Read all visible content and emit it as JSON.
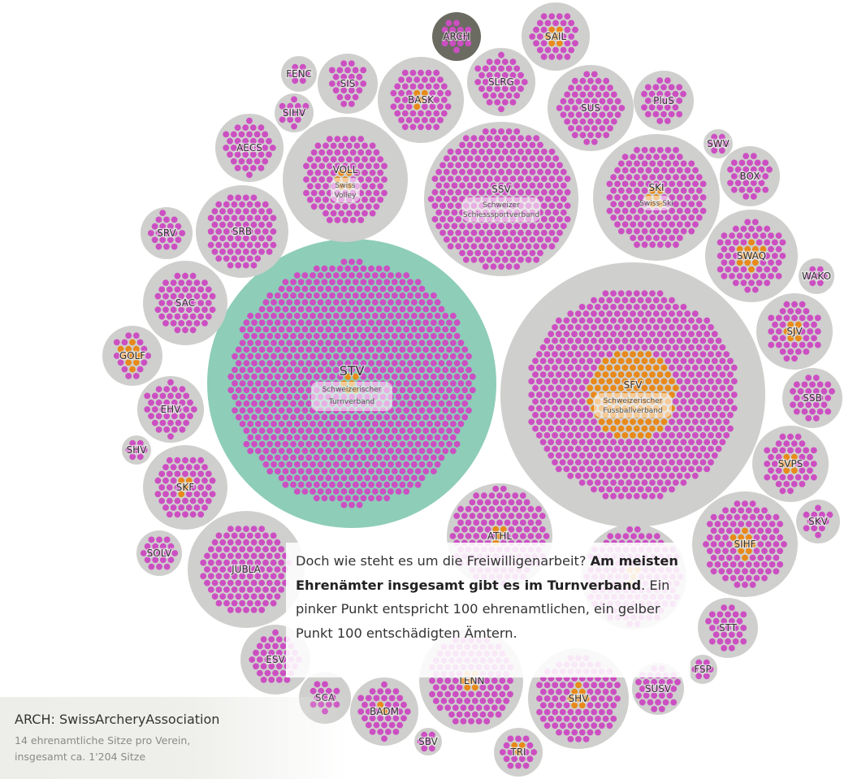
{
  "chart_data": {
    "type": "bubble",
    "unit_note": "Ein pinker Punkt = 100 ehrenamtliche Ämter, ein gelber Punkt = 100 entschädigte Ämter",
    "colors": {
      "circle": "#cfcfcd",
      "highlight": "#8ecdb8",
      "pink": "#cc4fc2",
      "orange": "#e8891a",
      "selected": "#6b6b62"
    },
    "highlighted": "STV",
    "selected": "ARCH",
    "nodes": [
      {
        "id": "STV",
        "sub": "Schweizerischer Turnverband",
        "pink": 880,
        "orange": 6
      },
      {
        "id": "SFV",
        "sub": "Schweizerischer Fussballverband",
        "pink": 540,
        "orange": 120
      },
      {
        "id": "SSV",
        "sub": "Schweizer Schiesssportverband",
        "pink": 300,
        "orange": 0
      },
      {
        "id": "VOLL",
        "sub": "Swiss Volley",
        "pink": 110,
        "orange": 6
      },
      {
        "id": "SKI",
        "sub": "Swiss-Ski",
        "pink": 150,
        "orange": 6
      },
      {
        "id": "ATHL",
        "pink": 150,
        "orange": 4
      },
      {
        "id": "JUBLA",
        "pink": 120,
        "orange": 0
      },
      {
        "id": "SHV",
        "pink": 100,
        "orange": 8
      },
      {
        "id": "TENN",
        "pink": 110,
        "orange": 6
      },
      {
        "id": "SIHF",
        "pink": 95,
        "orange": 10
      },
      {
        "id": "SWAQ",
        "pink": 60,
        "orange": 12
      },
      {
        "id": "SAIL",
        "pink": 30,
        "orange": 6
      },
      {
        "id": "ARCH",
        "pink": 14,
        "orange": 0
      },
      {
        "id": "SLRG",
        "pink": 40,
        "orange": 0
      },
      {
        "id": "SUS",
        "pink": 65,
        "orange": 0
      },
      {
        "id": "PluS",
        "pink": 30,
        "orange": 0
      },
      {
        "id": "BASK",
        "pink": 55,
        "orange": 4
      },
      {
        "id": "SIS",
        "pink": 25,
        "orange": 0
      },
      {
        "id": "FENC",
        "pink": 14,
        "orange": 0
      },
      {
        "id": "SIHV",
        "pink": 12,
        "orange": 0
      },
      {
        "id": "AECS",
        "pink": 40,
        "orange": 0
      },
      {
        "id": "SRB",
        "pink": 80,
        "orange": 0
      },
      {
        "id": "SRV",
        "pink": 20,
        "orange": 0
      },
      {
        "id": "SAC",
        "pink": 55,
        "orange": 0
      },
      {
        "id": "GOLF",
        "pink": 14,
        "orange": 10
      },
      {
        "id": "EHV",
        "pink": 40,
        "orange": 0
      },
      {
        "id": "SHV",
        "pink": 8,
        "orange": 0
      },
      {
        "id": "SKF",
        "pink": 55,
        "orange": 4
      },
      {
        "id": "SOLV",
        "pink": 22,
        "orange": 0
      },
      {
        "id": "ESV",
        "pink": 38,
        "orange": 0
      },
      {
        "id": "SCA",
        "pink": 14,
        "orange": 0
      },
      {
        "id": "BADM",
        "pink": 38,
        "orange": 2
      },
      {
        "id": "SBV",
        "pink": 6,
        "orange": 0
      },
      {
        "id": "TRI",
        "pink": 18,
        "orange": 4
      },
      {
        "id": "SUSV",
        "pink": 30,
        "orange": 0
      },
      {
        "id": "FSP",
        "pink": 8,
        "orange": 0
      },
      {
        "id": "STT",
        "pink": 28,
        "orange": 0
      },
      {
        "id": "SKV",
        "pink": 12,
        "orange": 0
      },
      {
        "id": "SVPS",
        "pink": 40,
        "orange": 6
      },
      {
        "id": "SSB",
        "pink": 30,
        "orange": 0
      },
      {
        "id": "SJV",
        "pink": 40,
        "orange": 6
      },
      {
        "id": "WAKO",
        "pink": 10,
        "orange": 0
      },
      {
        "id": "BOX",
        "pink": 30,
        "orange": 0
      },
      {
        "id": "SWV",
        "pink": 8,
        "orange": 0
      },
      {
        "id": "UNLABELED_CENTER",
        "pink": 200,
        "orange": 6
      }
    ]
  },
  "story": {
    "part1": "Doch wie steht es um die Freiwilligenarbeit? ",
    "bold": "Am meisten Ehrenämter insgesamt gibt es im Turnverband",
    "part2": ". Ein pinker Punkt entspricht 100 ehrenamtlichen, ein gelber Punkt 100 entschädigten Ämtern."
  },
  "info": {
    "title": "ARCH: SwissArcheryAssociation",
    "subtitle": "14 ehrenamtliche Sitze pro Verein, insgesamt ca. 1'204 Sitze"
  }
}
